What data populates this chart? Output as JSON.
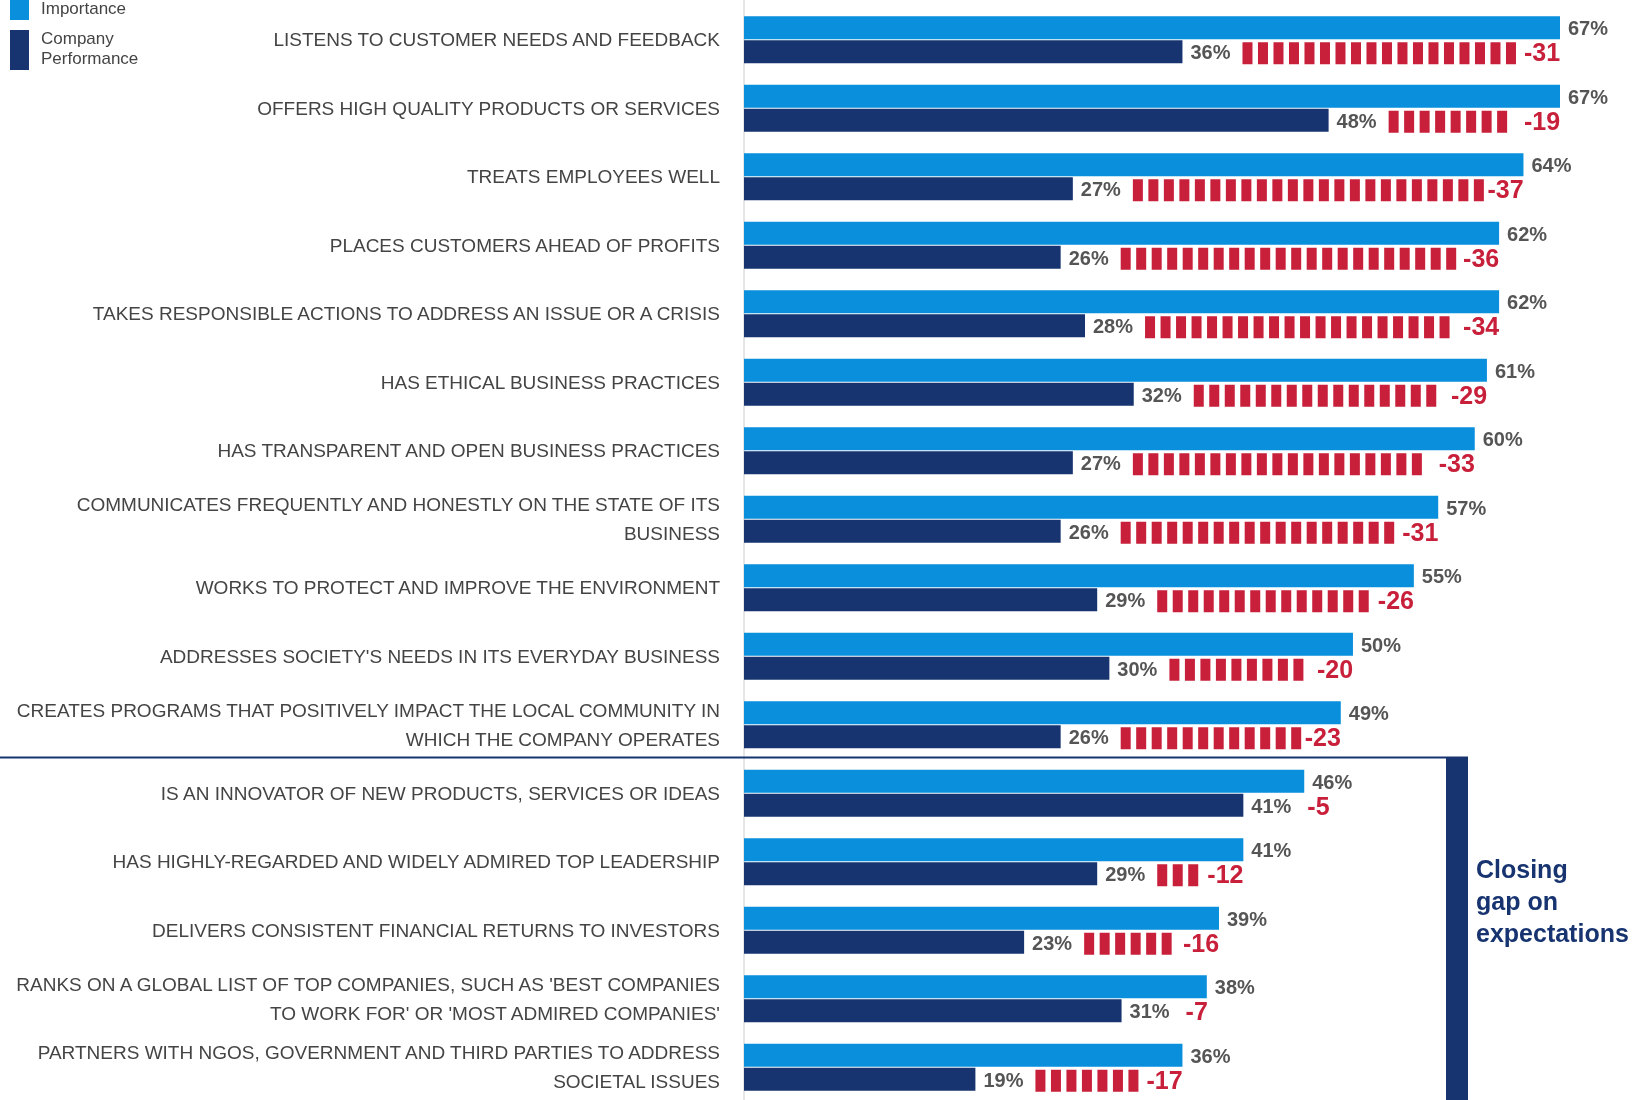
{
  "chart_data": {
    "type": "bar",
    "orientation": "horizontal",
    "legend": "top left",
    "categories": [
      "LISTENS TO CUSTOMER NEEDS AND FEEDBACK",
      "OFFERS HIGH QUALITY PRODUCTS OR SERVICES",
      "TREATS EMPLOYEES WELL",
      "PLACES CUSTOMERS AHEAD OF PROFITS",
      "TAKES RESPONSIBLE ACTIONS TO ADDRESS AN ISSUE OR A CRISIS",
      "HAS ETHICAL BUSINESS PRACTICES",
      "HAS TRANSPARENT AND OPEN BUSINESS PRACTICES",
      "COMMUNICATES FREQUENTLY AND HONESTLY ON THE STATE OF ITS BUSINESS",
      "WORKS TO PROTECT AND IMPROVE THE ENVIRONMENT",
      "ADDRESSES SOCIETY'S NEEDS IN ITS EVERYDAY BUSINESS",
      "CREATES PROGRAMS THAT POSITIVELY IMPACT THE LOCAL COMMUNITY IN WHICH THE COMPANY OPERATES",
      "IS AN INNOVATOR OF NEW PRODUCTS, SERVICES OR IDEAS",
      "HAS HIGHLY-REGARDED AND WIDELY ADMIRED TOP LEADERSHIP",
      "DELIVERS CONSISTENT FINANCIAL RETURNS TO INVESTORS",
      "RANKS ON A GLOBAL LIST OF TOP COMPANIES, SUCH AS 'BEST COMPANIES TO WORK FOR' OR 'MOST ADMIRED COMPANIES'",
      "PARTNERS WITH NGOS, GOVERNMENT AND THIRD PARTIES TO ADDRESS SOCIETAL ISSUES"
    ],
    "series": [
      {
        "name": "Importance",
        "color": "#0a8fdc",
        "values": [
          67,
          67,
          64,
          62,
          62,
          61,
          60,
          57,
          55,
          50,
          49,
          46,
          41,
          39,
          38,
          36
        ],
        "value_labels": [
          "67%",
          "67%",
          "64%",
          "62%",
          "62%",
          "61%",
          "60%",
          "57%",
          "55%",
          "50%",
          "49%",
          "46%",
          "41%",
          "39%",
          "38%",
          "36%"
        ]
      },
      {
        "name": "Company Performance",
        "color": "#173470",
        "values": [
          36,
          48,
          27,
          26,
          28,
          32,
          27,
          26,
          29,
          30,
          26,
          41,
          29,
          23,
          31,
          19
        ],
        "value_labels": [
          "36%",
          "48%",
          "27%",
          "26%",
          "28%",
          "32%",
          "27%",
          "26%",
          "29%",
          "30%",
          "26%",
          "41%",
          "29%",
          "23%",
          "31%",
          "19%"
        ]
      }
    ],
    "annotations": [
      "-31",
      "-19",
      "-37",
      "-36",
      "-34",
      "-29",
      "-33",
      "-31",
      "-26",
      "-20",
      "-23",
      "-5",
      "-12",
      "-16",
      "-7",
      "-17",
      "Closing gap on expectations"
    ]
  }
}
